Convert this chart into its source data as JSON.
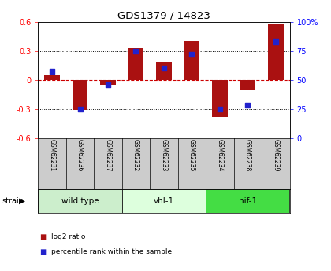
{
  "title": "GDS1379 / 14823",
  "samples": [
    "GSM62231",
    "GSM62236",
    "GSM62237",
    "GSM62232",
    "GSM62233",
    "GSM62235",
    "GSM62234",
    "GSM62238",
    "GSM62239"
  ],
  "log2_ratios": [
    0.05,
    -0.31,
    -0.05,
    0.33,
    0.18,
    0.4,
    -0.38,
    -0.1,
    0.57
  ],
  "percentile_ranks": [
    57,
    25,
    46,
    75,
    60,
    72,
    25,
    28,
    83
  ],
  "groups": [
    {
      "label": "wild type",
      "indices": [
        0,
        1,
        2
      ],
      "color": "#cceecc"
    },
    {
      "label": "vhl-1",
      "indices": [
        3,
        4,
        5
      ],
      "color": "#ddffdd"
    },
    {
      "label": "hif-1",
      "indices": [
        6,
        7,
        8
      ],
      "color": "#44dd44"
    }
  ],
  "ylim": [
    -0.6,
    0.6
  ],
  "yticks": [
    -0.6,
    -0.3,
    0.0,
    0.3,
    0.6
  ],
  "y2lim": [
    0,
    100
  ],
  "y2ticks": [
    0,
    25,
    50,
    75,
    100
  ],
  "y2labels": [
    "0",
    "25",
    "50",
    "75",
    "100%"
  ],
  "bar_color": "#aa1111",
  "dot_color": "#2222cc",
  "zero_line_color": "#cc0000",
  "grid_color": "#000000",
  "bg_color": "#ffffff",
  "plot_bg_color": "#ffffff",
  "label_bg_color": "#cccccc",
  "bar_width": 0.55,
  "dot_size": 22
}
